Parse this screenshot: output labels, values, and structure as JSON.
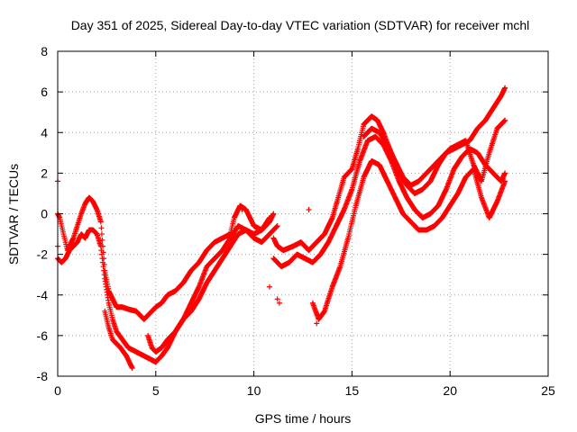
{
  "chart_data": {
    "type": "scatter",
    "title": "Day 351 of 2025, Sidereal Day-to-day VTEC variation (SDTVAR) for receiver mchl",
    "xlabel": "GPS time / hours",
    "ylabel": "SDTVAR / TECUs",
    "xlim": [
      0,
      25
    ],
    "ylim": [
      -8,
      8
    ],
    "xticks": [
      0,
      5,
      10,
      15,
      20,
      25
    ],
    "yticks": [
      -8,
      -6,
      -4,
      -2,
      0,
      2,
      4,
      6,
      8
    ],
    "grid": true,
    "marker": "plus",
    "color": "#ff0000",
    "series": [
      {
        "x": [
          0.0,
          0.1,
          0.3,
          0.5,
          0.8,
          1.0,
          1.2,
          1.4,
          1.6,
          1.8,
          2.0,
          2.2,
          2.4,
          2.6,
          2.8,
          3.0,
          3.3,
          3.6,
          4.0,
          4.4,
          4.8,
          5.0,
          5.3,
          5.6,
          6.0,
          6.4,
          6.8,
          7.2,
          7.6,
          8.0,
          8.4,
          8.8,
          9.0,
          9.3,
          9.6,
          10.0,
          10.4,
          10.8,
          11.0
        ],
        "y": [
          0.0,
          -0.2,
          -1.0,
          -1.8,
          -1.2,
          -0.6,
          0.0,
          0.5,
          0.8,
          0.6,
          0.2,
          -0.4,
          -2.8,
          -3.8,
          -4.2,
          -4.6,
          -4.6,
          -4.7,
          -4.8,
          -5.2,
          -4.8,
          -4.6,
          -4.4,
          -4.0,
          -3.8,
          -3.4,
          -2.8,
          -2.4,
          -1.8,
          -1.4,
          -1.2,
          -1.0,
          -0.2,
          0.4,
          0.2,
          -0.6,
          -0.8,
          -0.4,
          0.0
        ]
      },
      {
        "x": [
          0.0,
          0.2,
          0.4,
          0.6,
          0.8,
          1.0,
          1.2,
          1.4,
          1.6,
          1.8,
          2.0,
          2.2,
          2.4,
          2.6,
          2.8,
          3.0,
          3.3,
          3.6,
          4.0,
          4.4,
          4.8,
          5.0,
          5.3,
          5.6,
          6.0,
          6.4,
          6.8,
          7.2,
          7.6,
          8.0,
          8.4,
          8.8,
          9.2,
          9.6,
          10.0,
          10.4,
          10.8,
          11.2
        ],
        "y": [
          -2.2,
          -2.4,
          -2.2,
          -1.8,
          -1.6,
          -1.4,
          -1.0,
          -1.2,
          -0.8,
          -0.8,
          -1.0,
          -1.6,
          -3.2,
          -4.4,
          -5.2,
          -5.8,
          -6.2,
          -6.6,
          -6.8,
          -7.0,
          -7.2,
          -7.3,
          -7.0,
          -6.6,
          -5.8,
          -5.2,
          -4.4,
          -3.6,
          -2.6,
          -2.2,
          -1.8,
          -1.2,
          -0.6,
          -0.8,
          -1.2,
          -1.4,
          -1.0,
          -0.6
        ]
      },
      {
        "x": [
          2.4,
          2.6,
          2.8,
          3.0,
          3.2,
          3.5,
          3.8
        ],
        "y": [
          -4.8,
          -5.6,
          -6.2,
          -6.4,
          -6.6,
          -7.0,
          -7.6
        ]
      },
      {
        "x": [
          4.6,
          4.8,
          5.0,
          5.3,
          5.6,
          6.0,
          6.4,
          6.8,
          7.2,
          7.6,
          8.0,
          8.4,
          8.8,
          9.2,
          9.6,
          10.0,
          10.4,
          10.8
        ],
        "y": [
          -6.0,
          -6.6,
          -6.8,
          -6.6,
          -6.2,
          -5.8,
          -5.2,
          -4.8,
          -4.2,
          -3.4,
          -2.8,
          -2.2,
          -1.6,
          -1.0,
          -0.8,
          -1.0,
          -0.8,
          -0.2
        ]
      },
      {
        "x": [
          11.0,
          11.2,
          11.5,
          12.0,
          12.4,
          12.8,
          13.2,
          13.6,
          14.0,
          14.3,
          14.6,
          15.0,
          15.3,
          15.6,
          16.0,
          16.3,
          16.6,
          17.0,
          17.4,
          17.8,
          18.2,
          18.6,
          19.0,
          19.4,
          19.8,
          20.2,
          20.6,
          21.0,
          21.4,
          21.8,
          22.2,
          22.6,
          22.8
        ],
        "y": [
          -1.2,
          -1.6,
          -1.8,
          -1.6,
          -1.4,
          -1.8,
          -1.4,
          -1.0,
          -0.2,
          0.8,
          1.8,
          2.2,
          3.2,
          4.4,
          4.8,
          4.6,
          4.0,
          3.0,
          2.0,
          1.4,
          1.0,
          1.2,
          1.6,
          2.4,
          3.0,
          3.2,
          3.4,
          3.6,
          4.2,
          4.6,
          5.2,
          5.8,
          6.2
        ]
      },
      {
        "x": [
          11.0,
          11.4,
          11.8,
          12.2,
          12.6,
          13.0,
          13.4,
          13.8,
          14.2,
          14.6,
          15.0,
          15.4,
          15.8,
          16.2,
          16.6,
          17.0,
          17.4,
          17.8,
          18.2,
          18.6,
          19.0,
          19.4,
          19.8,
          20.2,
          20.6,
          21.0,
          21.4,
          21.8,
          22.2,
          22.6,
          22.8
        ],
        "y": [
          -2.2,
          -2.6,
          -2.4,
          -2.0,
          -2.2,
          -2.4,
          -2.0,
          -1.4,
          -0.6,
          0.2,
          1.2,
          2.6,
          3.6,
          3.8,
          3.4,
          2.6,
          1.6,
          0.8,
          0.2,
          -0.2,
          0.0,
          0.4,
          1.2,
          2.2,
          2.8,
          3.2,
          3.0,
          2.4,
          2.0,
          1.6,
          2.0
        ]
      },
      {
        "x": [
          13.0,
          13.3,
          13.6,
          14.0,
          14.4,
          14.8,
          15.2,
          15.6,
          16.0,
          16.4,
          16.8,
          17.2,
          17.6,
          18.0,
          18.4,
          18.8,
          19.2,
          19.6,
          20.0,
          20.4,
          20.8,
          21.2,
          21.6,
          22.0,
          22.4,
          22.8
        ],
        "y": [
          -4.4,
          -5.2,
          -4.8,
          -3.6,
          -2.6,
          -1.2,
          0.4,
          1.8,
          2.6,
          2.4,
          1.6,
          0.8,
          0.0,
          -0.4,
          -0.8,
          -0.8,
          -0.6,
          -0.2,
          0.4,
          1.0,
          1.8,
          2.2,
          0.8,
          -0.2,
          0.6,
          1.6
        ]
      },
      {
        "x": [
          15.6,
          16.0,
          16.4,
          16.8,
          17.2,
          17.6,
          18.0,
          18.4,
          18.8,
          19.2,
          19.6,
          20.0,
          20.4,
          20.8,
          21.2,
          21.6,
          22.0,
          22.4,
          22.8
        ],
        "y": [
          3.8,
          4.2,
          4.0,
          3.4,
          2.6,
          1.8,
          1.4,
          1.6,
          2.0,
          2.4,
          2.8,
          3.2,
          3.4,
          3.6,
          2.4,
          1.6,
          3.0,
          4.2,
          4.6
        ]
      },
      {
        "x": [
          0.0,
          0.0,
          11.2,
          11.3,
          10.8,
          13.2,
          13.3,
          12.8,
          9.4
        ],
        "y": [
          1.6,
          -1.6,
          -4.2,
          -4.4,
          -3.6,
          -5.4,
          -5.0,
          0.2,
          0.2
        ]
      }
    ]
  }
}
